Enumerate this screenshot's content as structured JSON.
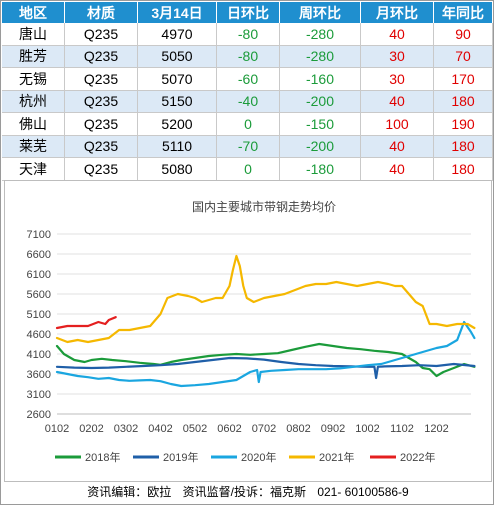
{
  "table": {
    "headers": [
      "地区",
      "材质",
      "3月14日",
      "日环比",
      "周环比",
      "月环比",
      "年同比"
    ],
    "rows": [
      [
        "唐山",
        "Q235",
        "4970",
        "-80",
        "-280",
        "40",
        "90"
      ],
      [
        "胜芳",
        "Q235",
        "5050",
        "-80",
        "-280",
        "30",
        "70"
      ],
      [
        "无锡",
        "Q235",
        "5070",
        "-60",
        "-160",
        "30",
        "170"
      ],
      [
        "杭州",
        "Q235",
        "5150",
        "-40",
        "-200",
        "40",
        "180"
      ],
      [
        "佛山",
        "Q235",
        "5200",
        "0",
        "-150",
        "100",
        "190"
      ],
      [
        "莱芜",
        "Q235",
        "5110",
        "-70",
        "-200",
        "40",
        "180"
      ],
      [
        "天津",
        "Q235",
        "5080",
        "0",
        "-180",
        "40",
        "180"
      ]
    ]
  },
  "chart_data": {
    "type": "line",
    "title": "国内主要城市带钢走势均价",
    "x_ticks": [
      "0102",
      "0202",
      "0302",
      "0402",
      "0502",
      "0602",
      "0702",
      "0802",
      "0902",
      "1002",
      "1102",
      "1202"
    ],
    "y_ticks": [
      2600,
      3100,
      3600,
      4100,
      4600,
      5100,
      5600,
      6100,
      6600,
      7100
    ],
    "ylim": [
      2600,
      7100
    ],
    "grid": true,
    "legend_position": "bottom",
    "series": [
      {
        "name": "2018年",
        "color": "#1b9b3a",
        "x": [
          0.0,
          0.2,
          0.5,
          0.8,
          1.0,
          1.3,
          1.6,
          2.0,
          2.4,
          2.8,
          3.0,
          3.3,
          3.6,
          4.0,
          4.4,
          4.8,
          5.2,
          5.6,
          6.0,
          6.4,
          6.8,
          7.2,
          7.6,
          8.0,
          8.4,
          8.8,
          9.2,
          9.6,
          10.0,
          10.2,
          10.4,
          10.6,
          10.8,
          11.0,
          11.2,
          11.5,
          11.8,
          12.1
        ],
        "values": [
          4300,
          4100,
          3950,
          3900,
          3950,
          3980,
          3950,
          3920,
          3880,
          3850,
          3830,
          3900,
          3950,
          4000,
          4050,
          4080,
          4100,
          4080,
          4100,
          4120,
          4200,
          4280,
          4350,
          4300,
          4250,
          4220,
          4180,
          4150,
          4100,
          4000,
          3900,
          3750,
          3720,
          3550,
          3650,
          3750,
          3850,
          3780
        ]
      },
      {
        "name": "2019年",
        "color": "#1f5fa8",
        "x": [
          0.0,
          0.5,
          1.0,
          1.5,
          2.0,
          2.5,
          3.0,
          3.5,
          4.0,
          4.5,
          5.0,
          5.5,
          6.0,
          6.5,
          7.0,
          7.5,
          8.0,
          8.5,
          9.0,
          9.2,
          9.25,
          9.3,
          9.5,
          10.0,
          10.5,
          11.0,
          11.5,
          12.1
        ],
        "values": [
          3780,
          3760,
          3750,
          3760,
          3780,
          3800,
          3820,
          3850,
          3900,
          3950,
          4000,
          3990,
          3960,
          3900,
          3850,
          3820,
          3800,
          3790,
          3780,
          3780,
          3500,
          3780,
          3790,
          3800,
          3820,
          3800,
          3850,
          3800
        ]
      },
      {
        "name": "2020年",
        "color": "#1aa6e0",
        "x": [
          0.0,
          0.3,
          0.6,
          0.9,
          1.2,
          1.5,
          1.8,
          2.1,
          2.4,
          2.7,
          3.0,
          3.3,
          3.6,
          4.0,
          4.4,
          4.8,
          5.2,
          5.6,
          5.8,
          5.85,
          5.9,
          6.2,
          6.6,
          7.0,
          7.4,
          7.8,
          8.2,
          8.6,
          9.0,
          9.4,
          9.8,
          10.2,
          10.6,
          11.0,
          11.3,
          11.6,
          11.8,
          12.0,
          12.1
        ],
        "values": [
          3650,
          3600,
          3550,
          3520,
          3480,
          3500,
          3450,
          3430,
          3440,
          3450,
          3420,
          3350,
          3300,
          3320,
          3350,
          3400,
          3450,
          3650,
          3700,
          3400,
          3650,
          3680,
          3700,
          3720,
          3720,
          3720,
          3740,
          3780,
          3820,
          3850,
          3950,
          4050,
          4150,
          4250,
          4300,
          4450,
          4900,
          4650,
          4500
        ]
      },
      {
        "name": "2021年",
        "color": "#f5b800",
        "x": [
          0.0,
          0.3,
          0.6,
          0.9,
          1.2,
          1.5,
          1.8,
          2.1,
          2.4,
          2.7,
          3.0,
          3.2,
          3.5,
          3.8,
          4.0,
          4.2,
          4.4,
          4.6,
          4.8,
          5.0,
          5.1,
          5.2,
          5.3,
          5.4,
          5.5,
          5.7,
          6.0,
          6.3,
          6.6,
          6.9,
          7.2,
          7.5,
          7.8,
          8.1,
          8.4,
          8.7,
          9.0,
          9.3,
          9.6,
          9.8,
          10.0,
          10.2,
          10.4,
          10.6,
          10.8,
          11.0,
          11.3,
          11.6,
          11.9,
          12.1
        ],
        "values": [
          4500,
          4400,
          4450,
          4400,
          4450,
          4500,
          4700,
          4700,
          4750,
          4800,
          5100,
          5500,
          5600,
          5550,
          5500,
          5400,
          5450,
          5500,
          5500,
          5800,
          6200,
          6550,
          6300,
          5800,
          5500,
          5400,
          5500,
          5550,
          5600,
          5700,
          5800,
          5850,
          5850,
          5900,
          5850,
          5800,
          5850,
          5900,
          5850,
          5800,
          5800,
          5600,
          5400,
          5300,
          4850,
          4850,
          4800,
          4850,
          4850,
          4750
        ]
      },
      {
        "name": "2022年",
        "color": "#e41f1f",
        "x": [
          0.0,
          0.3,
          0.6,
          0.9,
          1.2,
          1.4,
          1.5,
          1.7
        ],
        "values": [
          4750,
          4800,
          4800,
          4800,
          4900,
          4850,
          4950,
          5020
        ]
      }
    ]
  },
  "footer": {
    "editor": "资讯编辑：欧拉",
    "supervisor": "资讯监督/投诉：福克斯",
    "phone": "021- 60100586-9"
  }
}
